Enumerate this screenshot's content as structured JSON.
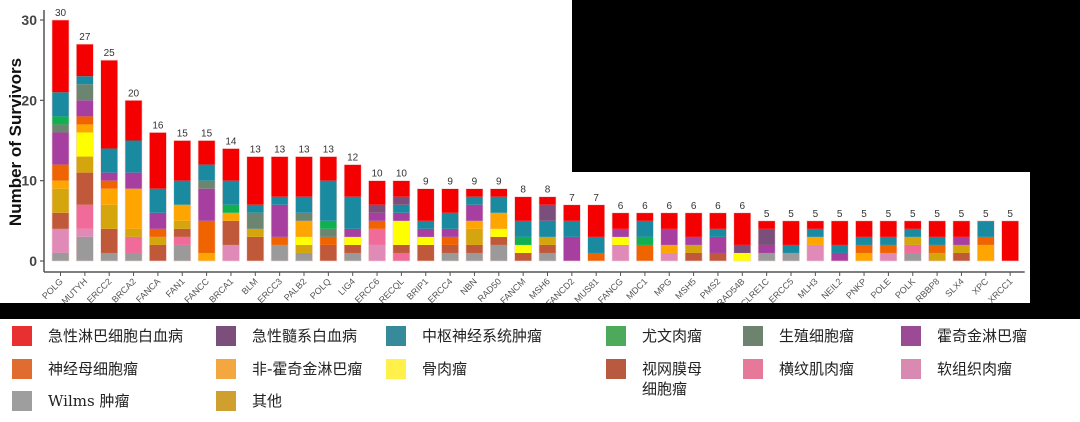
{
  "chart_data": {
    "type": "bar",
    "stacked": true,
    "title": "",
    "xlabel": "",
    "ylabel": "Number of Survivors",
    "ylim": [
      0,
      30
    ],
    "yticks": [
      0,
      10,
      20,
      30
    ],
    "grid": false,
    "legend_position": "bottom",
    "categories": [
      "POLG",
      "MUTYH",
      "ERCC2",
      "BRCA2",
      "FANCA",
      "FAN1",
      "FANCC",
      "BRCA1",
      "BLM",
      "ERCC3",
      "PALB2",
      "POLQ",
      "LIG4",
      "ERCC6",
      "RECQL",
      "BRIP1",
      "ERCC4",
      "NBN",
      "RAD50",
      "FANCM",
      "MSH6",
      "FANCD2",
      "MUS81",
      "FANCG",
      "MDC1",
      "MPG",
      "MSH5",
      "PMS2",
      "RAD54B",
      "DCLRE1C",
      "ERCC5",
      "MLH3",
      "NEIL2",
      "PNKP",
      "POLE",
      "POLK",
      "RBBP8",
      "SLX4",
      "XPC",
      "XRCC1"
    ],
    "totals": [
      30,
      27,
      25,
      20,
      16,
      15,
      15,
      14,
      13,
      13,
      13,
      13,
      12,
      10,
      10,
      9,
      9,
      9,
      9,
      8,
      8,
      7,
      7,
      6,
      6,
      6,
      6,
      6,
      6,
      5,
      5,
      5,
      5,
      5,
      5,
      5,
      5,
      5,
      5,
      5
    ],
    "series_keys": [
      "ALL",
      "AML",
      "CNS",
      "Ewing",
      "GermCell",
      "Hodgkin",
      "Neuroblastoma",
      "NHL",
      "Osteosarcoma",
      "Retinoblastoma",
      "Rhabdomyosarcoma",
      "SoftTissue",
      "Wilms",
      "Other"
    ],
    "stacks_bottom_to_top": [
      [
        [
          "Wilms",
          1
        ],
        [
          "SoftTissue",
          3
        ],
        [
          "Retinoblastoma",
          2
        ],
        [
          "Other",
          3
        ],
        [
          "NHL",
          1
        ],
        [
          "Neuroblastoma",
          2
        ],
        [
          "Hodgkin",
          4
        ],
        [
          "GermCell",
          1
        ],
        [
          "Ewing",
          1
        ],
        [
          "CNS",
          3
        ],
        [
          "ALL",
          9
        ]
      ],
      [
        [
          "Wilms",
          3
        ],
        [
          "SoftTissue",
          1
        ],
        [
          "Rhabdomyosarcoma",
          3
        ],
        [
          "Retinoblastoma",
          4
        ],
        [
          "Other",
          2
        ],
        [
          "Osteosarcoma",
          3
        ],
        [
          "NHL",
          1
        ],
        [
          "Neuroblastoma",
          1
        ],
        [
          "Hodgkin",
          2
        ],
        [
          "GermCell",
          2
        ],
        [
          "CNS",
          1
        ],
        [
          "ALL",
          4
        ]
      ],
      [
        [
          "Wilms",
          1
        ],
        [
          "Retinoblastoma",
          3
        ],
        [
          "Other",
          3
        ],
        [
          "NHL",
          2
        ],
        [
          "Neuroblastoma",
          1
        ],
        [
          "Hodgkin",
          1
        ],
        [
          "CNS",
          3
        ],
        [
          "ALL",
          11
        ]
      ],
      [
        [
          "Wilms",
          1
        ],
        [
          "Rhabdomyosarcoma",
          2
        ],
        [
          "Other",
          1
        ],
        [
          "NHL",
          5
        ],
        [
          "Hodgkin",
          2
        ],
        [
          "CNS",
          4
        ],
        [
          "ALL",
          5
        ]
      ],
      [
        [
          "Retinoblastoma",
          2
        ],
        [
          "Other",
          1
        ],
        [
          "Neuroblastoma",
          1
        ],
        [
          "Hodgkin",
          2
        ],
        [
          "CNS",
          3
        ],
        [
          "ALL",
          7
        ]
      ],
      [
        [
          "Wilms",
          2
        ],
        [
          "Rhabdomyosarcoma",
          1
        ],
        [
          "Retinoblastoma",
          1
        ],
        [
          "Other",
          1
        ],
        [
          "NHL",
          2
        ],
        [
          "CNS",
          3
        ],
        [
          "ALL",
          5
        ]
      ],
      [
        [
          "NHL",
          1
        ],
        [
          "Neuroblastoma",
          4
        ],
        [
          "Hodgkin",
          4
        ],
        [
          "GermCell",
          1
        ],
        [
          "CNS",
          2
        ],
        [
          "ALL",
          3
        ]
      ],
      [
        [
          "SoftTissue",
          2
        ],
        [
          "Retinoblastoma",
          3
        ],
        [
          "NHL",
          1
        ],
        [
          "Ewing",
          1
        ],
        [
          "CNS",
          3
        ],
        [
          "ALL",
          4
        ]
      ],
      [
        [
          "Retinoblastoma",
          3
        ],
        [
          "Other",
          1
        ],
        [
          "GermCell",
          2
        ],
        [
          "CNS",
          1
        ],
        [
          "ALL",
          6
        ]
      ],
      [
        [
          "Wilms",
          2
        ],
        [
          "Neuroblastoma",
          1
        ],
        [
          "Hodgkin",
          4
        ],
        [
          "CNS",
          1
        ],
        [
          "ALL",
          5
        ]
      ],
      [
        [
          "Wilms",
          1
        ],
        [
          "Other",
          1
        ],
        [
          "Osteosarcoma",
          1
        ],
        [
          "NHL",
          2
        ],
        [
          "GermCell",
          1
        ],
        [
          "CNS",
          2
        ],
        [
          "ALL",
          5
        ]
      ],
      [
        [
          "Retinoblastoma",
          2
        ],
        [
          "Neuroblastoma",
          1
        ],
        [
          "GermCell",
          1
        ],
        [
          "Ewing",
          1
        ],
        [
          "CNS",
          5
        ],
        [
          "ALL",
          3
        ]
      ],
      [
        [
          "Wilms",
          1
        ],
        [
          "Retinoblastoma",
          1
        ],
        [
          "Osteosarcoma",
          1
        ],
        [
          "Hodgkin",
          1
        ],
        [
          "CNS",
          4
        ],
        [
          "ALL",
          4
        ]
      ],
      [
        [
          "SoftTissue",
          2
        ],
        [
          "Rhabdomyosarcoma",
          2
        ],
        [
          "Neuroblastoma",
          1
        ],
        [
          "Hodgkin",
          1
        ],
        [
          "AML",
          1
        ],
        [
          "ALL",
          3
        ]
      ],
      [
        [
          "Rhabdomyosarcoma",
          1
        ],
        [
          "Retinoblastoma",
          1
        ],
        [
          "Osteosarcoma",
          3
        ],
        [
          "Hodgkin",
          1
        ],
        [
          "CNS",
          1
        ],
        [
          "AML",
          1
        ],
        [
          "ALL",
          2
        ]
      ],
      [
        [
          "Retinoblastoma",
          2
        ],
        [
          "Osteosarcoma",
          1
        ],
        [
          "Hodgkin",
          1
        ],
        [
          "CNS",
          1
        ],
        [
          "ALL",
          4
        ]
      ],
      [
        [
          "Wilms",
          1
        ],
        [
          "Retinoblastoma",
          1
        ],
        [
          "Neuroblastoma",
          1
        ],
        [
          "Hodgkin",
          1
        ],
        [
          "CNS",
          2
        ],
        [
          "ALL",
          3
        ]
      ],
      [
        [
          "Wilms",
          1
        ],
        [
          "Retinoblastoma",
          1
        ],
        [
          "Other",
          2
        ],
        [
          "NHL",
          1
        ],
        [
          "Hodgkin",
          2
        ],
        [
          "CNS",
          1
        ],
        [
          "ALL",
          1
        ]
      ],
      [
        [
          "Wilms",
          2
        ],
        [
          "Retinoblastoma",
          1
        ],
        [
          "Osteosarcoma",
          1
        ],
        [
          "NHL",
          2
        ],
        [
          "CNS",
          2
        ],
        [
          "ALL",
          1
        ]
      ],
      [
        [
          "Retinoblastoma",
          1
        ],
        [
          "Osteosarcoma",
          1
        ],
        [
          "Ewing",
          1
        ],
        [
          "CNS",
          2
        ],
        [
          "ALL",
          3
        ]
      ],
      [
        [
          "Wilms",
          1
        ],
        [
          "Retinoblastoma",
          1
        ],
        [
          "Other",
          1
        ],
        [
          "CNS",
          2
        ],
        [
          "AML",
          2
        ],
        [
          "ALL",
          1
        ]
      ],
      [
        [
          "Hodgkin",
          3
        ],
        [
          "CNS",
          2
        ],
        [
          "ALL",
          2
        ]
      ],
      [
        [
          "Neuroblastoma",
          1
        ],
        [
          "CNS",
          2
        ],
        [
          "ALL",
          4
        ]
      ],
      [
        [
          "SoftTissue",
          2
        ],
        [
          "Osteosarcoma",
          1
        ],
        [
          "Hodgkin",
          1
        ],
        [
          "ALL",
          2
        ]
      ],
      [
        [
          "Neuroblastoma",
          2
        ],
        [
          "Ewing",
          1
        ],
        [
          "CNS",
          2
        ],
        [
          "ALL",
          1
        ]
      ],
      [
        [
          "SoftTissue",
          1
        ],
        [
          "NHL",
          1
        ],
        [
          "Hodgkin",
          2
        ],
        [
          "ALL",
          2
        ]
      ],
      [
        [
          "Retinoblastoma",
          1
        ],
        [
          "Other",
          1
        ],
        [
          "Hodgkin",
          1
        ],
        [
          "ALL",
          3
        ]
      ],
      [
        [
          "Retinoblastoma",
          1
        ],
        [
          "Hodgkin",
          2
        ],
        [
          "CNS",
          1
        ],
        [
          "ALL",
          2
        ]
      ],
      [
        [
          "Osteosarcoma",
          1
        ],
        [
          "AML",
          1
        ],
        [
          "ALL",
          4
        ]
      ],
      [
        [
          "Wilms",
          1
        ],
        [
          "Hodgkin",
          1
        ],
        [
          "AML",
          2
        ],
        [
          "ALL",
          1
        ]
      ],
      [
        [
          "Wilms",
          1
        ],
        [
          "CNS",
          1
        ],
        [
          "ALL",
          3
        ]
      ],
      [
        [
          "SoftTissue",
          2
        ],
        [
          "NHL",
          1
        ],
        [
          "CNS",
          1
        ],
        [
          "ALL",
          1
        ]
      ],
      [
        [
          "Hodgkin",
          1
        ],
        [
          "CNS",
          1
        ],
        [
          "ALL",
          3
        ]
      ],
      [
        [
          "NHL",
          1
        ],
        [
          "Neuroblastoma",
          1
        ],
        [
          "CNS",
          1
        ],
        [
          "ALL",
          2
        ]
      ],
      [
        [
          "SoftTissue",
          1
        ],
        [
          "Neuroblastoma",
          1
        ],
        [
          "CNS",
          1
        ],
        [
          "ALL",
          2
        ]
      ],
      [
        [
          "Wilms",
          1
        ],
        [
          "Rhabdomyosarcoma",
          1
        ],
        [
          "Other",
          1
        ],
        [
          "CNS",
          1
        ],
        [
          "ALL",
          1
        ]
      ],
      [
        [
          "Other",
          1
        ],
        [
          "Neuroblastoma",
          1
        ],
        [
          "CNS",
          1
        ],
        [
          "ALL",
          2
        ]
      ],
      [
        [
          "Retinoblastoma",
          1
        ],
        [
          "Other",
          1
        ],
        [
          "Hodgkin",
          1
        ],
        [
          "ALL",
          2
        ]
      ],
      [
        [
          "NHL",
          2
        ],
        [
          "Neuroblastoma",
          1
        ],
        [
          "CNS",
          2
        ]
      ],
      [
        [
          "ALL",
          5
        ]
      ]
    ],
    "colors": {
      "ALL": "#f50000",
      "AML": "#7b4f7b",
      "CNS": "#1a8aa0",
      "Ewing": "#10b050",
      "GermCell": "#6b8570",
      "Hodgkin": "#a63fa0",
      "Neuroblastoma": "#f06400",
      "NHL": "#ffa500",
      "Osteosarcoma": "#ffff00",
      "Retinoblastoma": "#c0583a",
      "Rhabdomyosarcoma": "#f06b9a",
      "SoftTissue": "#e08ab8",
      "Wilms": "#9a9a9a",
      "Other": "#d4a50d"
    }
  },
  "legend": {
    "items": [
      {
        "key": "ALL",
        "label": "急性淋巴细胞白血病",
        "color": "#e83030"
      },
      {
        "key": "AML",
        "label": "急性髓系白血病",
        "color": "#7b4f7b"
      },
      {
        "key": "CNS",
        "label": "中枢神经系统肿瘤",
        "color": "#368a9a"
      },
      {
        "key": "Ewing",
        "label": "尤文肉瘤",
        "color": "#4caa5a"
      },
      {
        "key": "GermCell",
        "label": "生殖细胞瘤",
        "color": "#6e8270"
      },
      {
        "key": "Hodgkin",
        "label": "霍奇金淋巴瘤",
        "color": "#9b4b96"
      },
      {
        "key": "Neuroblastoma",
        "label": "神经母细胞瘤",
        "color": "#e06c30"
      },
      {
        "key": "NHL",
        "label": "非-霍奇金淋巴瘤",
        "color": "#f4a640"
      },
      {
        "key": "Osteosarcoma",
        "label": "骨肉瘤",
        "color": "#fff04a"
      },
      {
        "key": "Retinoblastoma",
        "label": "视网膜母\n细胞瘤",
        "color": "#b85a40"
      },
      {
        "key": "Rhabdomyosarcoma",
        "label": "横纹肌肉瘤",
        "color": "#e6789a"
      },
      {
        "key": "SoftTissue",
        "label": "软组织肉瘤",
        "color": "#d88ab0"
      },
      {
        "key": "Wilms",
        "label": "Wilms 肿瘤",
        "color": "#9e9e9e"
      },
      {
        "key": "Other",
        "label": "其他",
        "color": "#cfa030"
      }
    ]
  }
}
